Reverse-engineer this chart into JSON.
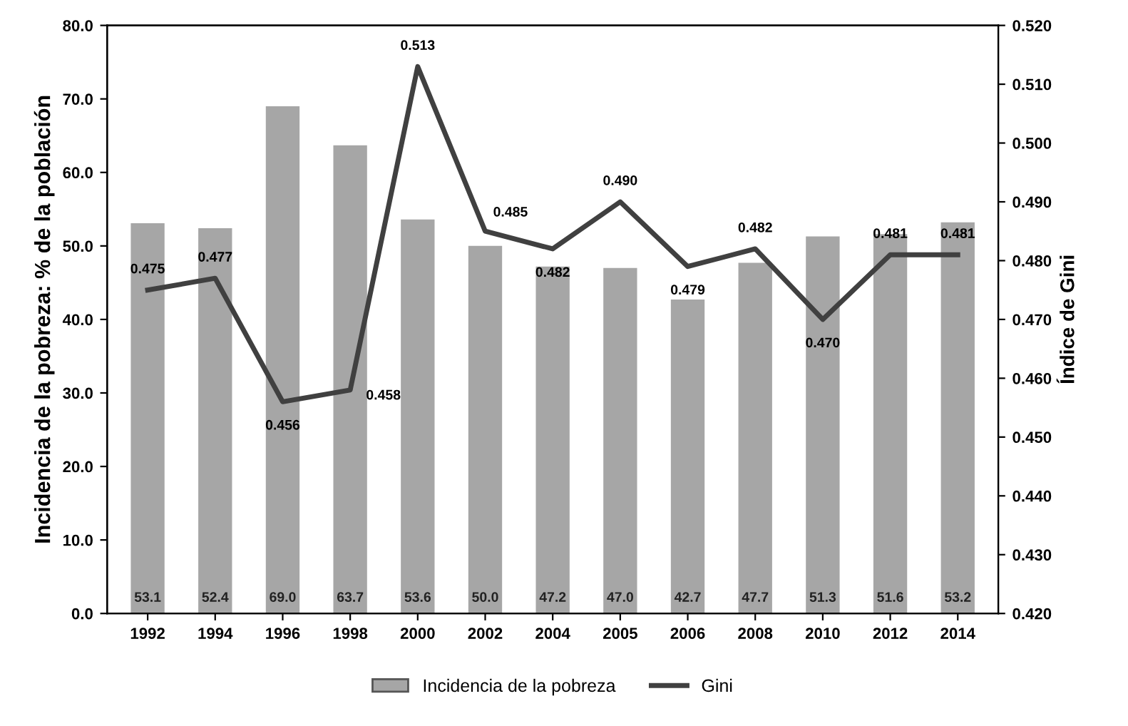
{
  "chart_data": {
    "type": "bar",
    "ylabel": "Incidencia de la pobreza: % de la población",
    "y2label": "Índice de Gini",
    "categories": [
      "1992",
      "1994",
      "1996",
      "1998",
      "2000",
      "2002",
      "2004",
      "2005",
      "2006",
      "2008",
      "2010",
      "2012",
      "2014"
    ],
    "series": [
      {
        "name": "Incidencia de la pobreza",
        "color": "#a6a6a6",
        "values": [
          53.1,
          52.4,
          69.0,
          63.7,
          53.6,
          50.0,
          47.2,
          47.0,
          42.7,
          47.7,
          51.3,
          51.6,
          53.2
        ],
        "value_labels": [
          "53.1",
          "52.4",
          "69.0",
          "63.7",
          "53.6",
          "50.0",
          "47.2",
          "47.0",
          "42.7",
          "47.7",
          "51.3",
          "51.6",
          "53.2"
        ]
      },
      {
        "name": "Gini",
        "type": "line",
        "axis": "y2",
        "color": "#404040",
        "values": [
          0.475,
          0.477,
          0.456,
          0.458,
          0.513,
          0.485,
          0.482,
          0.49,
          0.479,
          0.482,
          0.47,
          0.481,
          0.481
        ],
        "value_labels": [
          "0.475",
          "0.477",
          "0.456",
          "0.458",
          "0.513",
          "0.485",
          "0.482",
          "0.490",
          "0.479",
          "0.482",
          "0.470",
          "0.481",
          "0.481"
        ]
      }
    ],
    "ylim": [
      0,
      80
    ],
    "yticks": [
      {
        "value": 0,
        "label": "0.0"
      },
      {
        "value": 10,
        "label": "10.0"
      },
      {
        "value": 20,
        "label": "20.0"
      },
      {
        "value": 30,
        "label": "30.0"
      },
      {
        "value": 40,
        "label": "40.0"
      },
      {
        "value": 50,
        "label": "50.0"
      },
      {
        "value": 60,
        "label": "60.0"
      },
      {
        "value": 70,
        "label": "70.0"
      },
      {
        "value": 80,
        "label": "80.0"
      }
    ],
    "y2lim": [
      0.42,
      0.52
    ],
    "y2ticks": [
      {
        "value": 0.42,
        "label": "0.420"
      },
      {
        "value": 0.43,
        "label": "0.430"
      },
      {
        "value": 0.44,
        "label": "0.440"
      },
      {
        "value": 0.45,
        "label": "0.450"
      },
      {
        "value": 0.46,
        "label": "0.460"
      },
      {
        "value": 0.47,
        "label": "0.470"
      },
      {
        "value": 0.48,
        "label": "0.480"
      },
      {
        "value": 0.49,
        "label": "0.490"
      },
      {
        "value": 0.5,
        "label": "0.500"
      },
      {
        "value": 0.51,
        "label": "0.510"
      },
      {
        "value": 0.52,
        "label": "0.520"
      }
    ],
    "grid": false,
    "legend": "bottom",
    "marker": "none",
    "line_style": "solid"
  }
}
